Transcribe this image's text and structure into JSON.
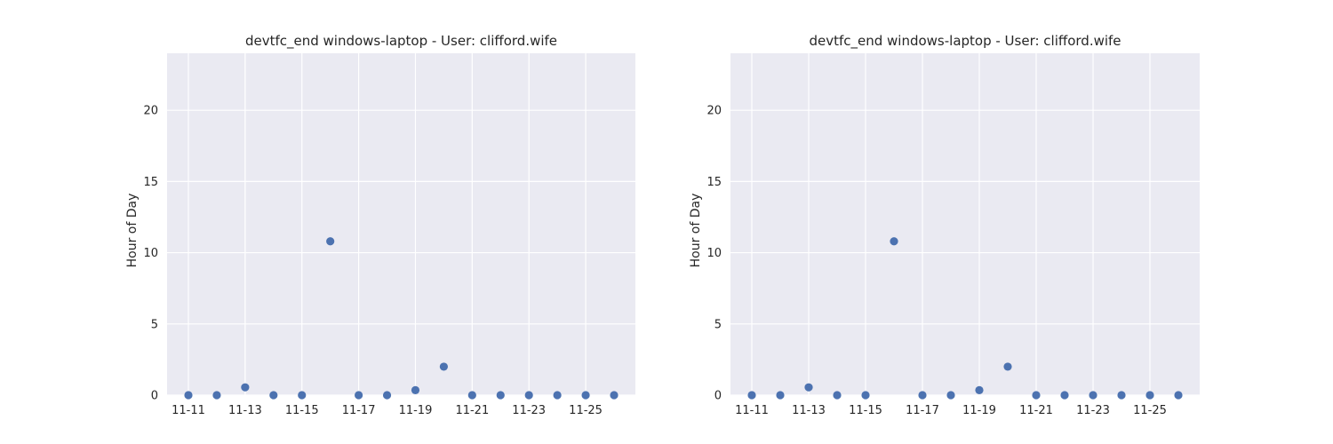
{
  "chart_data": [
    {
      "type": "scatter",
      "title": "devtfc_end windows-laptop - User: clifford.wife",
      "xlabel": "",
      "ylabel": "Hour of Day",
      "x": [
        "11-11",
        "11-12",
        "11-13",
        "11-14",
        "11-15",
        "11-16",
        "11-17",
        "11-18",
        "11-19",
        "11-20",
        "11-21",
        "11-22",
        "11-23",
        "11-24",
        "11-25",
        "11-26"
      ],
      "values": [
        0,
        0,
        0.55,
        0,
        0,
        10.8,
        0,
        0,
        0.35,
        2.0,
        0,
        0,
        0,
        0,
        0,
        0
      ],
      "xticks": [
        "11-11",
        "11-13",
        "11-15",
        "11-17",
        "11-19",
        "11-21",
        "11-23",
        "11-25"
      ],
      "yticks": [
        0,
        5,
        10,
        15,
        20
      ],
      "ylim": [
        0,
        24
      ],
      "grid": true,
      "colors": {
        "background": "#eaeaf2",
        "grid": "#ffffff",
        "marker": "#4c72b0"
      }
    },
    {
      "type": "scatter",
      "title": "devtfc_end windows-laptop - User: clifford.wife",
      "xlabel": "",
      "ylabel": "Hour of Day",
      "x": [
        "11-11",
        "11-12",
        "11-13",
        "11-14",
        "11-15",
        "11-16",
        "11-17",
        "11-18",
        "11-19",
        "11-20",
        "11-21",
        "11-22",
        "11-23",
        "11-24",
        "11-25",
        "11-26"
      ],
      "values": [
        0,
        0,
        0.55,
        0,
        0,
        10.8,
        0,
        0,
        0.35,
        2.0,
        0,
        0,
        0,
        0,
        0,
        0
      ],
      "xticks": [
        "11-11",
        "11-13",
        "11-15",
        "11-17",
        "11-19",
        "11-21",
        "11-23",
        "11-25"
      ],
      "yticks": [
        0,
        5,
        10,
        15,
        20
      ],
      "ylim": [
        0,
        24
      ],
      "grid": true,
      "colors": {
        "background": "#eaeaf2",
        "grid": "#ffffff",
        "marker": "#4c72b0"
      }
    }
  ]
}
